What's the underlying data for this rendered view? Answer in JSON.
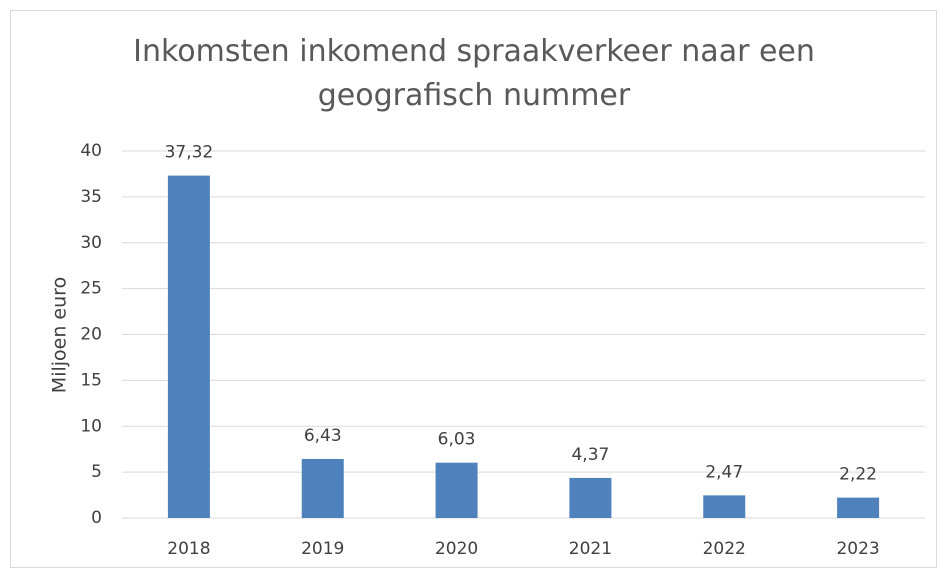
{
  "chart_data": {
    "type": "bar",
    "title": "Inkomsten inkomend spraakverkeer naar een geografisch nummer",
    "y_label": "Miljoen euro",
    "categories": [
      "2018",
      "2019",
      "2020",
      "2021",
      "2022",
      "2023"
    ],
    "values": [
      37.32,
      6.43,
      6.03,
      4.37,
      2.47,
      2.22
    ],
    "value_labels": [
      "37,32",
      "6,43",
      "6,03",
      "4,37",
      "2,47",
      "2,22"
    ],
    "color": "#4f81bd",
    "ylim": [
      0,
      40
    ],
    "yticks": [
      0,
      5,
      10,
      15,
      20,
      25,
      30,
      35,
      40
    ],
    "grid": true
  }
}
